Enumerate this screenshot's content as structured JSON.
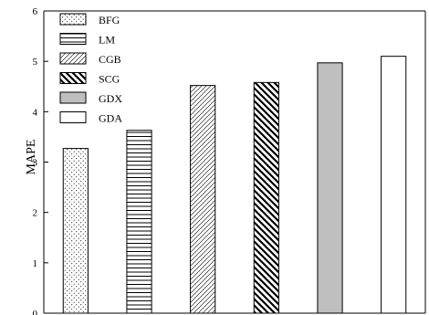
{
  "chart_data": {
    "type": "bar",
    "title": "",
    "xlabel": "",
    "ylabel": "MAPE",
    "ylim": [
      0,
      6
    ],
    "yticks": [
      "0",
      "1",
      "2",
      "3",
      "4",
      "5",
      "6"
    ],
    "grid": false,
    "legend_position": "top-left",
    "categories": [
      "BFG",
      "LM",
      "CGB",
      "SCG",
      "GDX",
      "GDA"
    ],
    "values": [
      3.27,
      3.63,
      4.52,
      4.58,
      4.97,
      5.1
    ],
    "fills": [
      "dots",
      "horizontal-lines",
      "fine-diagonal",
      "bold-diagonal",
      "solid-gray",
      "solid-white"
    ],
    "colors": {
      "gray": "#bfbfbf",
      "stroke": "#000000",
      "background": "#ffffff"
    }
  }
}
